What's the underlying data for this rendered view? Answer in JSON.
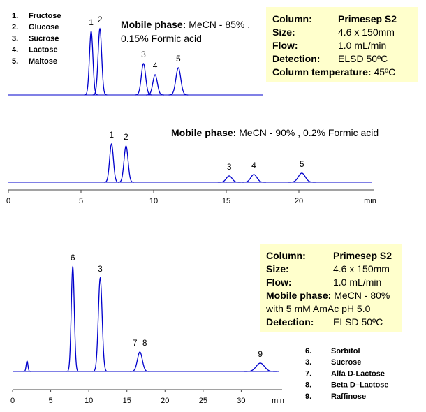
{
  "chart_data": [
    {
      "type": "chromatogram",
      "color": "#0000cc",
      "xlim": [
        0,
        17.5
      ],
      "ylim": [
        0,
        100
      ],
      "peaks": {
        "x": [
          5.7,
          6.3,
          9.3,
          10.1,
          11.7
        ],
        "heights": [
          91,
          95,
          45,
          29,
          39
        ],
        "labels": [
          "1",
          "2",
          "3",
          "4",
          "5"
        ]
      },
      "legend": [
        {
          "number": "1.",
          "name": "Fructose"
        },
        {
          "number": "2.",
          "name": "Glucose"
        },
        {
          "number": "3.",
          "name": "Sucrose"
        },
        {
          "number": "4.",
          "name": "Lactose"
        },
        {
          "number": "5.",
          "name": "Maltose"
        }
      ],
      "mobile_phase": {
        "label": "Mobile phase:",
        "lines": [
          "MeCN - 85% ,",
          "0.15% Formic acid"
        ]
      },
      "conditions": [
        {
          "label": "Column:",
          "value": "Primesep S2"
        },
        {
          "label": "Size:",
          "value": "4.6 x 150mm"
        },
        {
          "label": "Flow:",
          "value": "1.0 mL/min"
        },
        {
          "label": "Detection:",
          "value": "ELSD 50ºC"
        },
        {
          "label": "Column temperature:",
          "value": "45ºC"
        }
      ]
    },
    {
      "type": "chromatogram",
      "color": "#0000cc",
      "xlim": [
        0,
        25
      ],
      "ylim": [
        0,
        100
      ],
      "xticks": [
        0,
        5,
        10,
        15,
        20
      ],
      "x_label": "min",
      "peaks": {
        "x": [
          7.1,
          8.1,
          15.2,
          16.9,
          20.2
        ],
        "heights": [
          55,
          52,
          9,
          11,
          13
        ],
        "labels": [
          "1",
          "2",
          "3",
          "4",
          "5"
        ]
      },
      "mobile_phase": {
        "label": "Mobile phase:",
        "lines": [
          "MeCN - 90% , 0.2% Formic acid"
        ]
      }
    },
    {
      "type": "chromatogram",
      "color": "#0000cc",
      "xlim": [
        0,
        35
      ],
      "ylim": [
        0,
        160
      ],
      "xticks": [
        0,
        5,
        10,
        15,
        20,
        25,
        30
      ],
      "x_label": "min",
      "peaks": {
        "x": [
          1.9,
          7.9,
          11.5,
          16.7,
          32.5
        ],
        "heights": [
          15,
          150,
          134,
          28,
          12
        ],
        "labels": [
          null,
          "6",
          "3",
          "7 8",
          "9"
        ]
      },
      "legend": [
        {
          "number": "6.",
          "name": "Sorbitol"
        },
        {
          "number": "3.",
          "name": "Sucrose"
        },
        {
          "number": "7.",
          "name": "Alfa D-Lactose"
        },
        {
          "number": "8.",
          "name": "Beta D–Lactose"
        },
        {
          "number": "9.",
          "name": "Raffinose"
        }
      ],
      "conditions": [
        {
          "label": "Column:",
          "value": "Primesep S2"
        },
        {
          "label": "Size:",
          "value": "4.6 x 150mm"
        },
        {
          "label": "Flow:",
          "value": "1.0 mL/min"
        },
        {
          "label": "Mobile phase:",
          "value": "MeCN - 80%",
          "extra": "with 5 mM AmAc pH 5.0"
        },
        {
          "label": "Detection:",
          "value": "ELSD 50ºC"
        }
      ]
    }
  ]
}
